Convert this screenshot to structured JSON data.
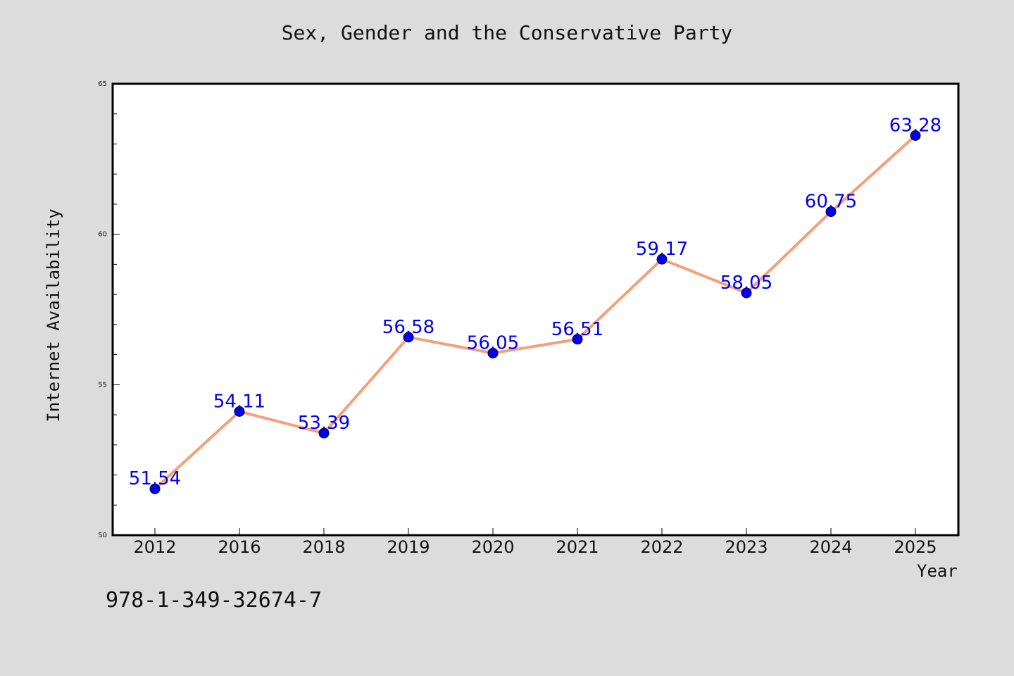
{
  "chart_data": {
    "type": "line",
    "title": "Sex, Gender and the Conservative Party",
    "xlabel": "Year",
    "ylabel": "Internet Availability",
    "categories": [
      "2012",
      "2016",
      "2018",
      "2019",
      "2020",
      "2021",
      "2022",
      "2023",
      "2024",
      "2025"
    ],
    "values": [
      51.54,
      54.11,
      53.39,
      56.58,
      56.05,
      56.51,
      59.17,
      58.05,
      60.75,
      63.28
    ],
    "data_labels": [
      "51.54",
      "54.11",
      "53.39",
      "56.58",
      "56.05",
      "56.51",
      "59.17",
      "58.05",
      "60.75",
      "63.28"
    ],
    "ylim": [
      50,
      65
    ],
    "yticks": [
      "50",
      "55",
      "60",
      "65"
    ],
    "grid": false,
    "line_color": "#f4a07a",
    "marker_color": "#0000ee"
  },
  "footer": {
    "isbn": "978-1-349-32674-7"
  }
}
